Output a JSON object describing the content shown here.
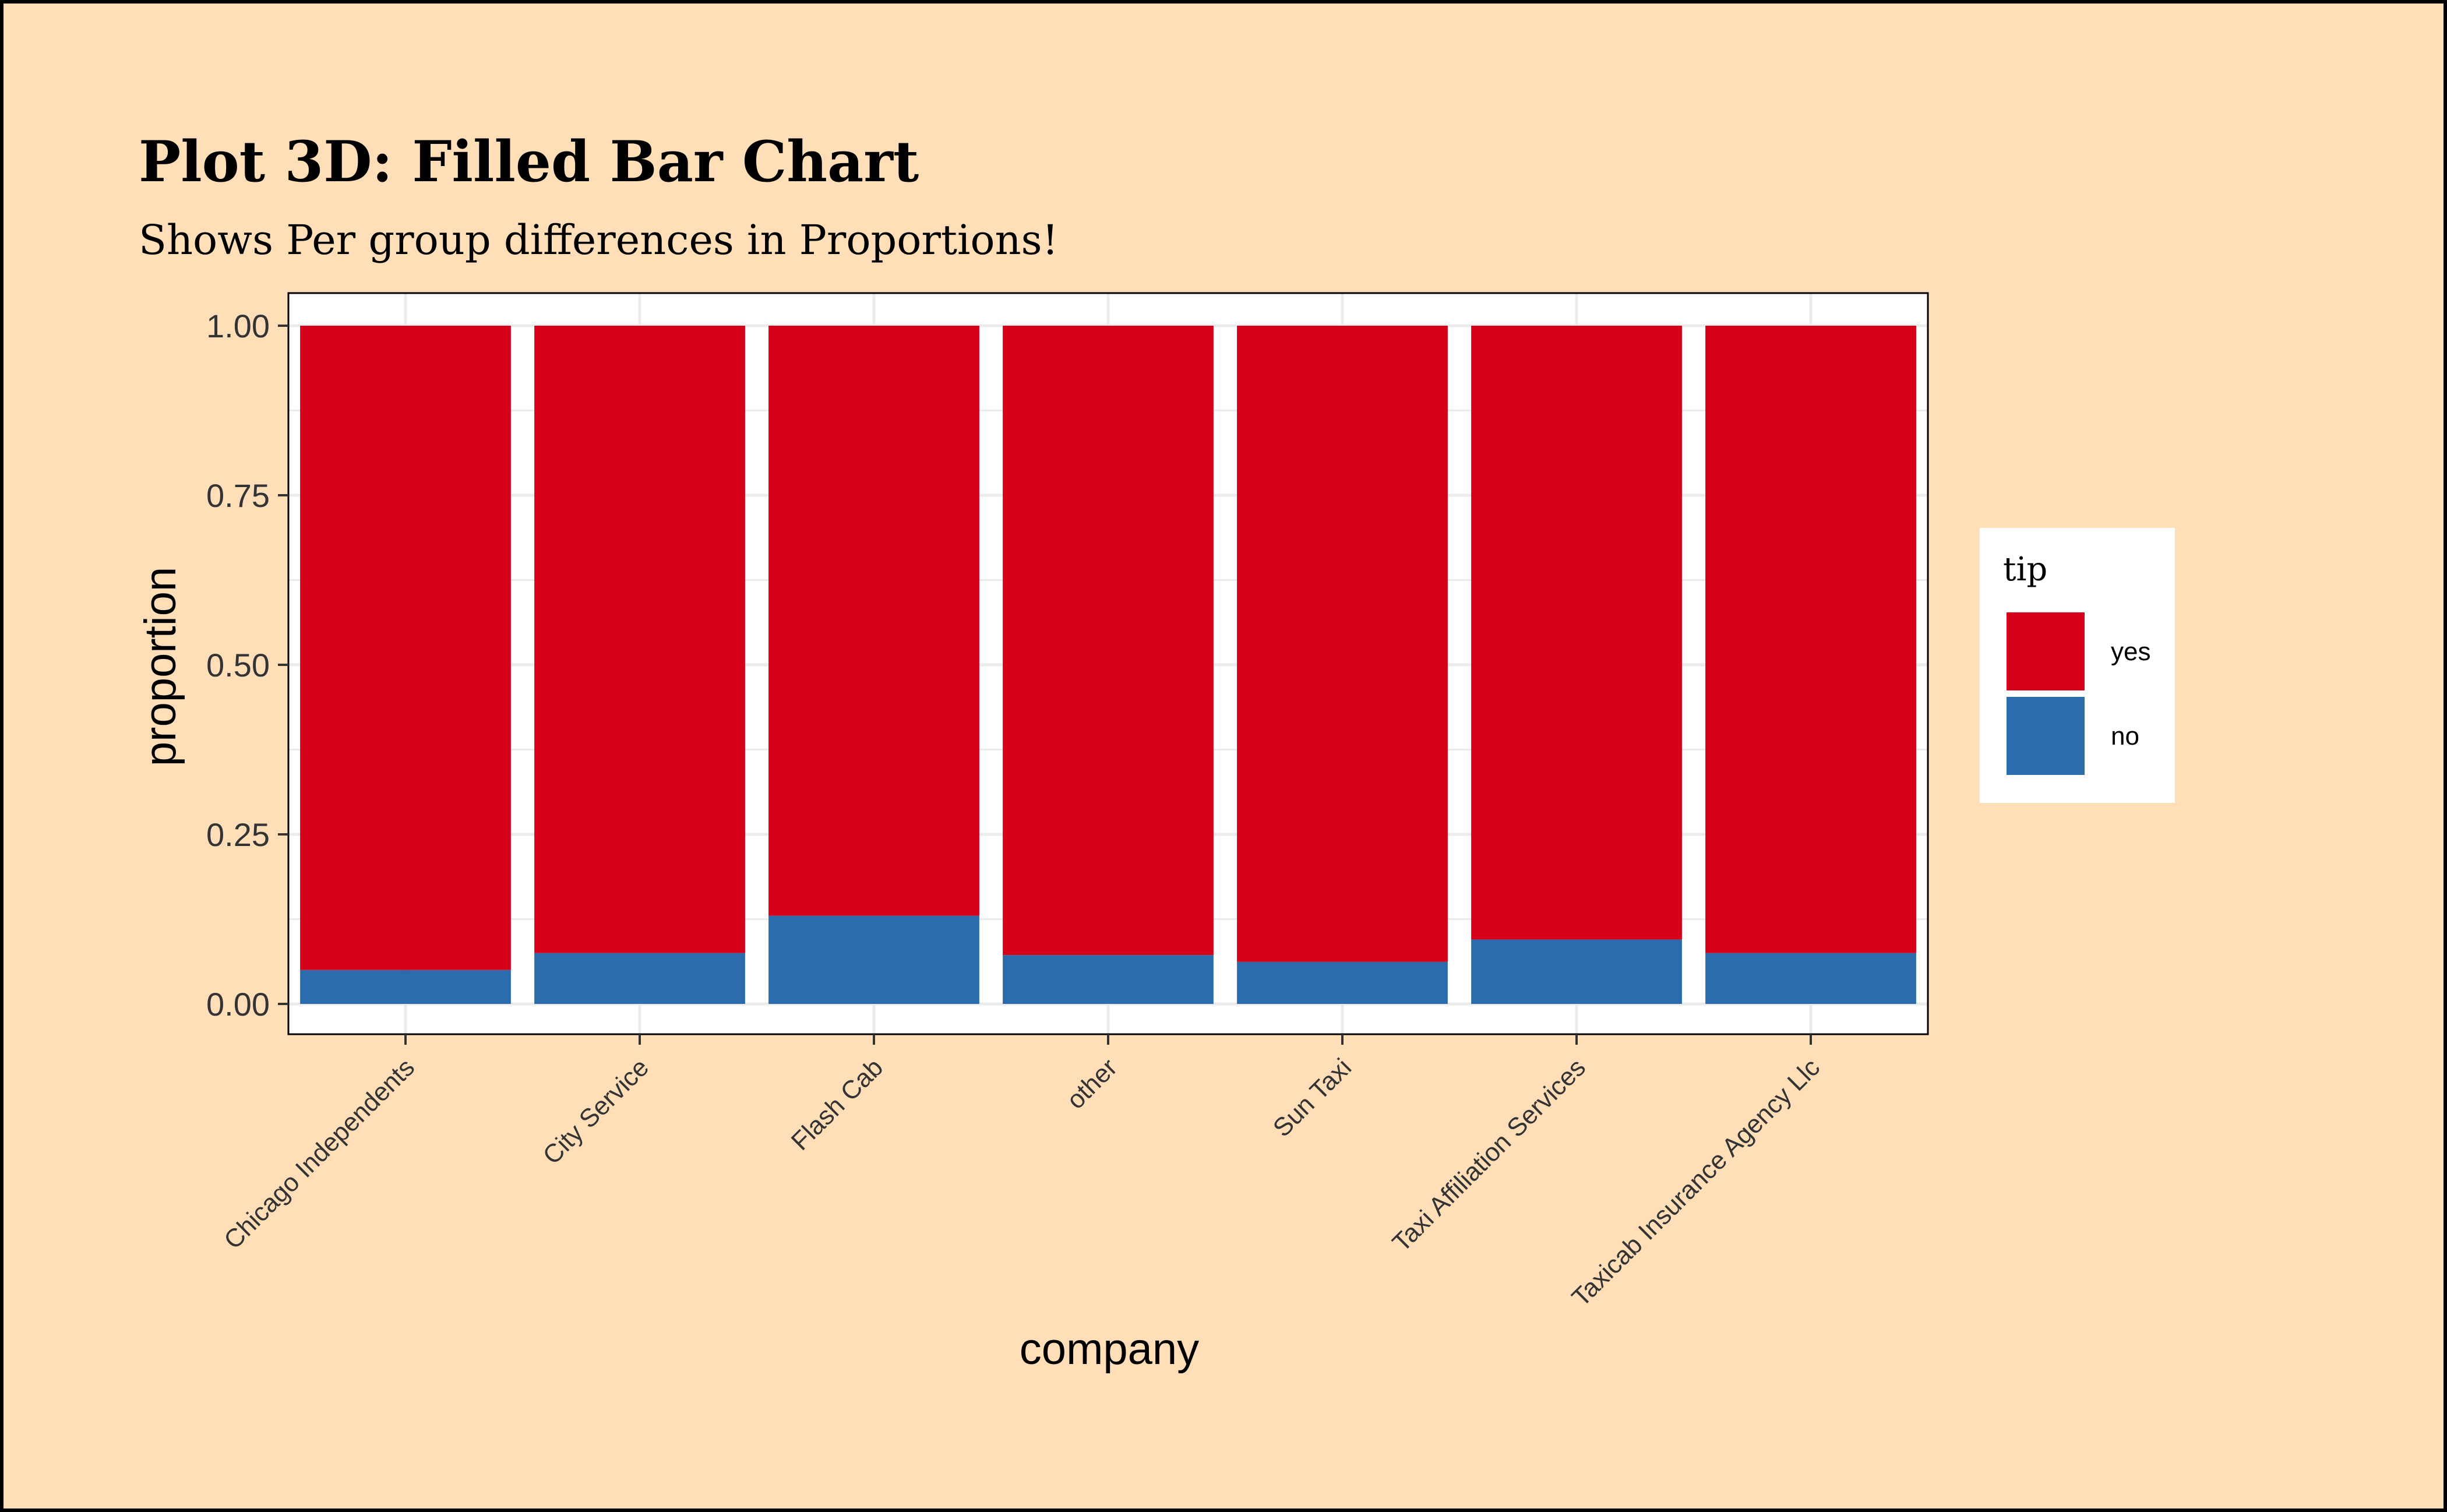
{
  "chart_data": {
    "type": "bar",
    "stacked": true,
    "position": "fill",
    "title": "Plot 3D: Filled Bar Chart",
    "subtitle": "Shows Per group differences in Proportions!",
    "xlabel": "company",
    "ylabel": "proportion",
    "ylim": [
      0,
      1
    ],
    "yticks": [
      "0.00",
      "0.25",
      "0.50",
      "0.75",
      "1.00"
    ],
    "categories": [
      "Chicago Independents",
      "City Service",
      "Flash Cab",
      "other",
      "Sun Taxi",
      "Taxi Affiliation Services",
      "Taxicab Insurance Agency Llc"
    ],
    "series": [
      {
        "name": "no",
        "color": "#2C6BAC",
        "values": [
          0.05,
          0.075,
          0.13,
          0.072,
          0.062,
          0.095,
          0.075
        ]
      },
      {
        "name": "yes",
        "color": "#D7001A",
        "values": [
          0.95,
          0.925,
          0.87,
          0.928,
          0.938,
          0.905,
          0.925
        ]
      }
    ],
    "legend": {
      "title": "tip",
      "placement": "right",
      "entries": [
        "yes",
        "no"
      ]
    },
    "grid": true,
    "colors": {
      "background": "#FFDEB8",
      "panel": "#FFFFFF",
      "grid": "#EBEBEB",
      "yes": "#D7001A",
      "no": "#2C6BAC"
    }
  }
}
